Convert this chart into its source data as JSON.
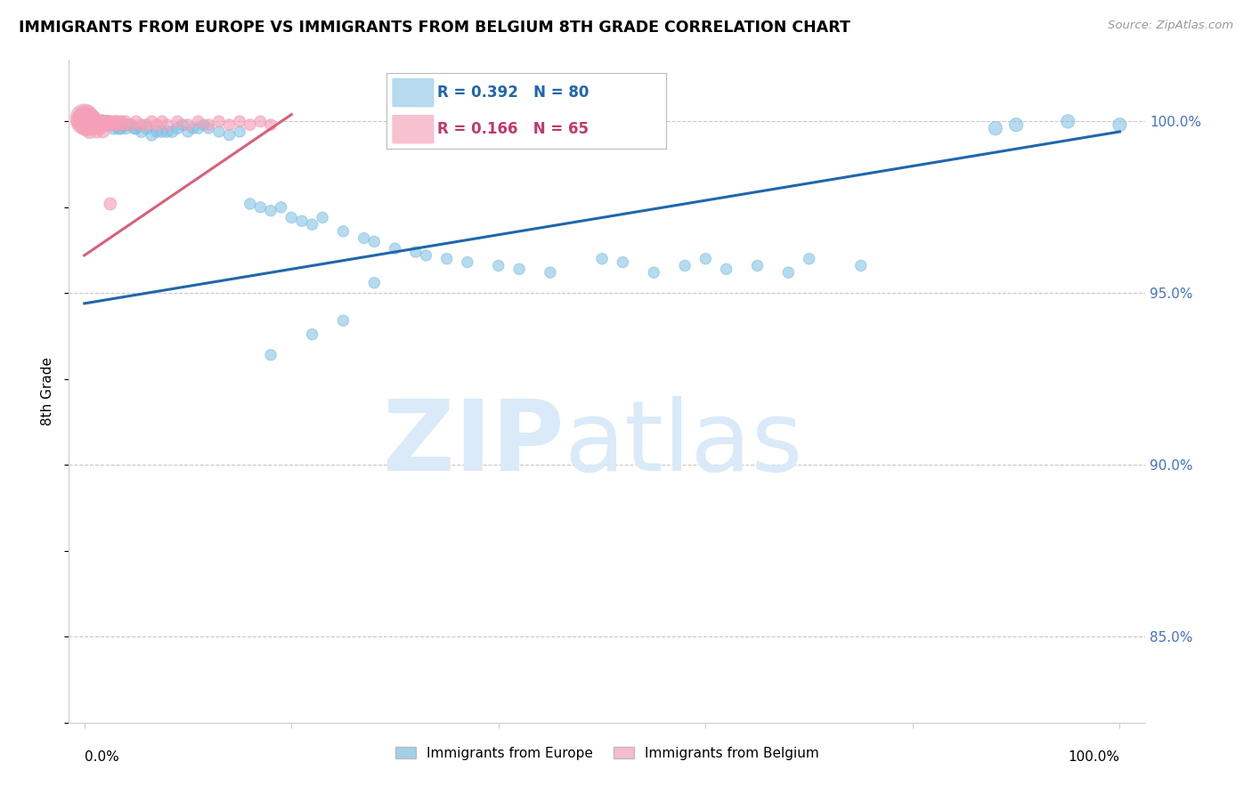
{
  "title": "IMMIGRANTS FROM EUROPE VS IMMIGRANTS FROM BELGIUM 8TH GRADE CORRELATION CHART",
  "source": "Source: ZipAtlas.com",
  "ylabel": "8th Grade",
  "y_axis_labels": [
    "85.0%",
    "90.0%",
    "95.0%",
    "100.0%"
  ],
  "y_axis_values": [
    0.85,
    0.9,
    0.95,
    1.0
  ],
  "legend_blue": "Immigrants from Europe",
  "legend_pink": "Immigrants from Belgium",
  "R_blue": 0.392,
  "N_blue": 80,
  "R_pink": 0.166,
  "N_pink": 65,
  "blue_color": "#7bbde0",
  "pink_color": "#f4a0b8",
  "blue_line_color": "#2166ac",
  "pink_line_color": "#d9607a",
  "watermark_color": "#daeaf8",
  "ylim_min": 0.825,
  "ylim_max": 1.018,
  "xlim_min": -0.015,
  "xlim_max": 1.025,
  "blue_line_x0": 0.0,
  "blue_line_x1": 1.0,
  "blue_line_y0": 0.947,
  "blue_line_y1": 0.997,
  "pink_line_x0": 0.0,
  "pink_line_x1": 0.2,
  "pink_line_y0": 0.961,
  "pink_line_y1": 1.002,
  "blue_scatter_x": [
    0.0,
    0.003,
    0.005,
    0.007,
    0.008,
    0.009,
    0.01,
    0.012,
    0.013,
    0.015,
    0.015,
    0.018,
    0.02,
    0.022,
    0.025,
    0.028,
    0.03,
    0.032,
    0.033,
    0.035,
    0.038,
    0.04,
    0.042,
    0.045,
    0.048,
    0.05,
    0.055,
    0.06,
    0.065,
    0.07,
    0.075,
    0.08,
    0.085,
    0.09,
    0.095,
    0.1,
    0.105,
    0.11,
    0.115,
    0.12,
    0.13,
    0.14,
    0.15,
    0.16,
    0.17,
    0.18,
    0.19,
    0.2,
    0.21,
    0.22,
    0.23,
    0.25,
    0.27,
    0.28,
    0.3,
    0.32,
    0.33,
    0.35,
    0.37,
    0.4,
    0.42,
    0.45,
    0.5,
    0.52,
    0.55,
    0.58,
    0.6,
    0.62,
    0.65,
    0.68,
    0.7,
    0.75,
    0.88,
    0.9,
    0.95,
    1.0,
    0.28,
    0.18,
    0.22,
    0.25
  ],
  "blue_scatter_y": [
    1.001,
    1.0,
    1.0,
    0.999,
    1.0,
    0.999,
    1.0,
    1.0,
    0.999,
    1.0,
    0.999,
    1.0,
    0.999,
    1.0,
    0.999,
    0.998,
    0.999,
    0.999,
    0.998,
    0.998,
    0.999,
    0.998,
    0.999,
    0.999,
    0.998,
    0.998,
    0.997,
    0.998,
    0.996,
    0.997,
    0.997,
    0.997,
    0.997,
    0.998,
    0.999,
    0.997,
    0.998,
    0.998,
    0.999,
    0.998,
    0.997,
    0.996,
    0.997,
    0.976,
    0.975,
    0.974,
    0.975,
    0.972,
    0.971,
    0.97,
    0.972,
    0.968,
    0.966,
    0.965,
    0.963,
    0.962,
    0.961,
    0.96,
    0.959,
    0.958,
    0.957,
    0.956,
    0.96,
    0.959,
    0.956,
    0.958,
    0.96,
    0.957,
    0.958,
    0.956,
    0.96,
    0.958,
    0.998,
    0.999,
    1.0,
    0.999,
    0.953,
    0.932,
    0.938,
    0.942
  ],
  "pink_scatter_x": [
    0.0,
    0.0,
    0.001,
    0.002,
    0.002,
    0.003,
    0.003,
    0.004,
    0.004,
    0.005,
    0.005,
    0.006,
    0.006,
    0.007,
    0.007,
    0.008,
    0.008,
    0.009,
    0.01,
    0.01,
    0.011,
    0.012,
    0.013,
    0.014,
    0.015,
    0.016,
    0.017,
    0.018,
    0.019,
    0.02,
    0.022,
    0.024,
    0.025,
    0.027,
    0.029,
    0.03,
    0.032,
    0.034,
    0.036,
    0.038,
    0.04,
    0.045,
    0.05,
    0.055,
    0.06,
    0.065,
    0.07,
    0.075,
    0.08,
    0.09,
    0.1,
    0.11,
    0.12,
    0.13,
    0.14,
    0.15,
    0.16,
    0.17,
    0.18,
    0.005,
    0.008,
    0.012,
    0.015,
    0.018,
    0.025
  ],
  "pink_scatter_y": [
    1.001,
    1.0,
    1.001,
    1.0,
    0.999,
    1.0,
    0.999,
    1.0,
    0.999,
    1.001,
    1.0,
    0.999,
    1.0,
    0.999,
    1.0,
    1.001,
    0.999,
    1.0,
    0.999,
    1.0,
    1.0,
    0.999,
    1.0,
    0.999,
    1.0,
    0.999,
    1.0,
    0.999,
    1.0,
    0.999,
    1.0,
    0.999,
    1.0,
    0.999,
    1.0,
    0.999,
    1.0,
    0.999,
    1.0,
    0.999,
    1.0,
    0.999,
    1.0,
    0.999,
    0.999,
    1.0,
    0.999,
    1.0,
    0.999,
    1.0,
    0.999,
    1.0,
    0.999,
    1.0,
    0.999,
    1.0,
    0.999,
    1.0,
    0.999,
    0.997,
    0.998,
    0.997,
    0.998,
    0.997,
    0.976
  ],
  "blue_dot_sizes": [
    300,
    200,
    180,
    160,
    160,
    150,
    150,
    130,
    130,
    120,
    120,
    110,
    110,
    100,
    100,
    100,
    100,
    100,
    100,
    100,
    90,
    90,
    90,
    90,
    90,
    90,
    90,
    90,
    85,
    85,
    85,
    85,
    85,
    85,
    85,
    80,
    80,
    80,
    80,
    80,
    80,
    80,
    80,
    80,
    80,
    80,
    80,
    80,
    80,
    80,
    80,
    80,
    80,
    80,
    80,
    80,
    80,
    80,
    80,
    80,
    80,
    80,
    80,
    80,
    80,
    80,
    80,
    80,
    80,
    80,
    80,
    80,
    120,
    120,
    120,
    120,
    80,
    80,
    80,
    80
  ],
  "pink_dot_sizes": [
    500,
    450,
    400,
    350,
    320,
    300,
    280,
    260,
    250,
    240,
    220,
    200,
    190,
    180,
    170,
    160,
    150,
    140,
    130,
    120,
    110,
    110,
    100,
    100,
    100,
    100,
    100,
    100,
    100,
    100,
    90,
    90,
    90,
    90,
    90,
    90,
    90,
    90,
    90,
    90,
    85,
    85,
    85,
    85,
    85,
    85,
    85,
    85,
    85,
    85,
    85,
    85,
    85,
    85,
    85,
    85,
    85,
    85,
    85,
    120,
    120,
    100,
    100,
    100,
    100
  ]
}
